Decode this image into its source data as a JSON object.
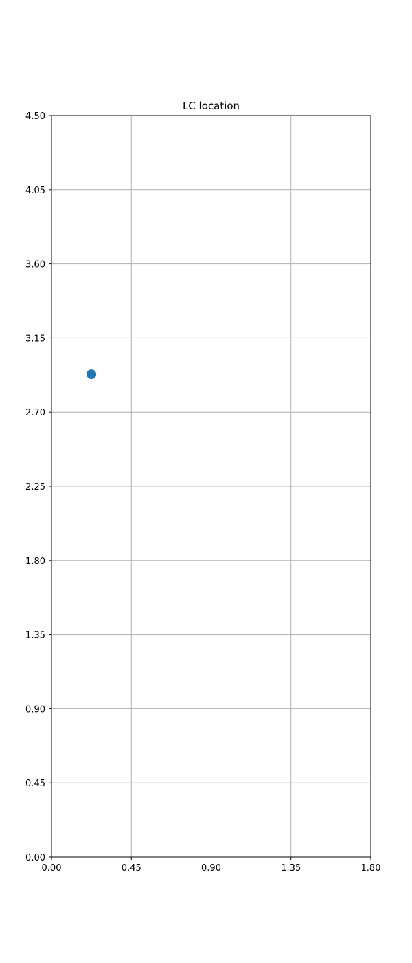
{
  "chart_data": {
    "type": "scatter",
    "title": "LC location",
    "xlabel": "",
    "ylabel": "",
    "xlim": [
      0.0,
      1.8
    ],
    "ylim": [
      0.0,
      4.5
    ],
    "x_ticks": [
      "0.00",
      "0.45",
      "0.90",
      "1.35",
      "1.80"
    ],
    "y_ticks": [
      "0.00",
      "0.45",
      "0.90",
      "1.35",
      "1.80",
      "2.25",
      "2.70",
      "3.15",
      "3.60",
      "4.05",
      "4.50"
    ],
    "grid": true,
    "legend": "none",
    "series": [
      {
        "color": "#1f77b4",
        "points": [
          {
            "x": 0.225,
            "y": 2.93
          }
        ]
      }
    ]
  },
  "colors": {
    "marker": "#1f77b4",
    "grid": "#b0b0b0",
    "axes": "#000000"
  }
}
